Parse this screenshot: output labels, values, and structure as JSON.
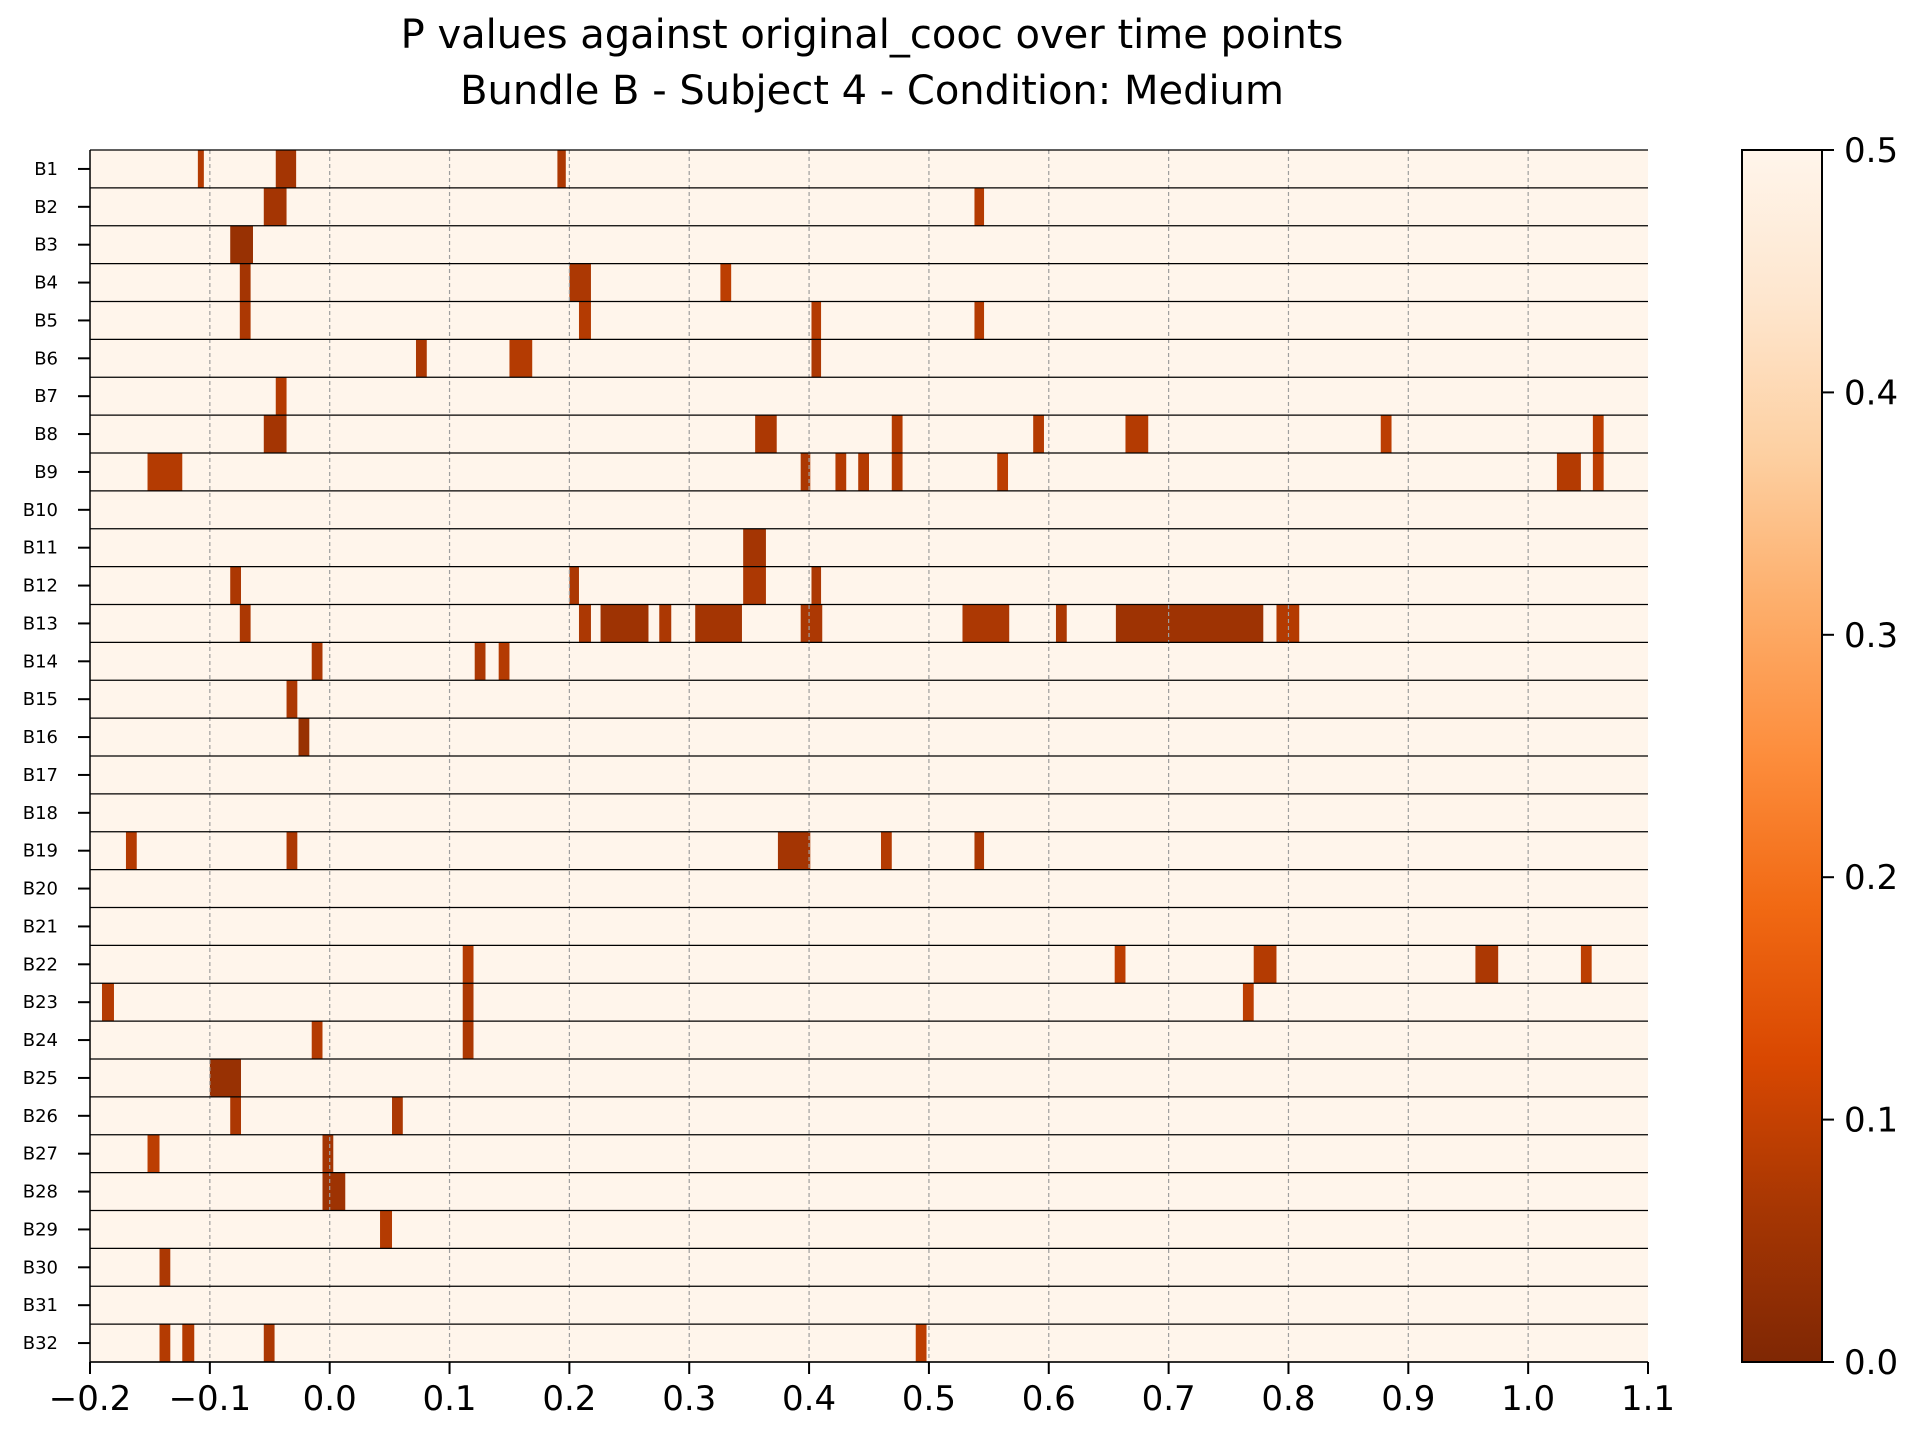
{
  "chart_data": {
    "type": "heatmap",
    "title": "P values against original_cooc over time points",
    "subtitle": "Bundle B - Subject 4 - Condition: Medium",
    "xlabel": "",
    "ylabel": "",
    "xlim": [
      -0.2,
      1.1
    ],
    "x_ticks": [
      -0.2,
      -0.1,
      0.0,
      0.1,
      0.2,
      0.3,
      0.4,
      0.5,
      0.6,
      0.7,
      0.8,
      0.9,
      1.0,
      1.1
    ],
    "x_tick_labels": [
      "−0.2",
      "−0.1",
      "0.0",
      "0.1",
      "0.2",
      "0.3",
      "0.4",
      "0.5",
      "0.6",
      "0.7",
      "0.8",
      "0.9",
      "1.0",
      "1.1"
    ],
    "rows": [
      "B1",
      "B2",
      "B3",
      "B4",
      "B5",
      "B6",
      "B7",
      "B8",
      "B9",
      "B10",
      "B11",
      "B12",
      "B13",
      "B14",
      "B15",
      "B16",
      "B17",
      "B18",
      "B19",
      "B20",
      "B21",
      "B22",
      "B23",
      "B24",
      "B25",
      "B26",
      "B27",
      "B28",
      "B29",
      "B30",
      "B31",
      "B32"
    ],
    "background_p": 0.5,
    "grid": "vertical dashed at x ticks",
    "colorbar": {
      "min": 0.0,
      "max": 0.5,
      "ticks": [
        0.0,
        0.1,
        0.2,
        0.3,
        0.4,
        0.5
      ],
      "tick_labels": [
        "0.0",
        "0.1",
        "0.2",
        "0.3",
        "0.4",
        "0.5"
      ],
      "colors": [
        "#7f2704",
        "#a63603",
        "#d94801",
        "#f16913",
        "#fd8d3c",
        "#fdae6b",
        "#fdd0a2",
        "#fee6ce",
        "#fff5eb"
      ]
    },
    "significant_cells": [
      {
        "row": "B1",
        "x": [
          -0.11,
          -0.105
        ],
        "p": 0.08
      },
      {
        "row": "B1",
        "x": [
          -0.045,
          -0.028
        ],
        "p": 0.06
      },
      {
        "row": "B1",
        "x": [
          0.19,
          0.197
        ],
        "p": 0.07
      },
      {
        "row": "B2",
        "x": [
          -0.055,
          -0.036
        ],
        "p": 0.06
      },
      {
        "row": "B2",
        "x": [
          0.538,
          0.546
        ],
        "p": 0.08
      },
      {
        "row": "B3",
        "x": [
          -0.083,
          -0.064
        ],
        "p": 0.04
      },
      {
        "row": "B4",
        "x": [
          -0.075,
          -0.066
        ],
        "p": 0.06
      },
      {
        "row": "B4",
        "x": [
          0.2,
          0.218
        ],
        "p": 0.07
      },
      {
        "row": "B4",
        "x": [
          0.326,
          0.335
        ],
        "p": 0.09
      },
      {
        "row": "B5",
        "x": [
          -0.075,
          -0.066
        ],
        "p": 0.07
      },
      {
        "row": "B5",
        "x": [
          0.208,
          0.218
        ],
        "p": 0.08
      },
      {
        "row": "B5",
        "x": [
          0.402,
          0.41
        ],
        "p": 0.08
      },
      {
        "row": "B5",
        "x": [
          0.538,
          0.546
        ],
        "p": 0.08
      },
      {
        "row": "B6",
        "x": [
          0.072,
          0.081
        ],
        "p": 0.07
      },
      {
        "row": "B6",
        "x": [
          0.15,
          0.169
        ],
        "p": 0.08
      },
      {
        "row": "B6",
        "x": [
          0.402,
          0.41
        ],
        "p": 0.07
      },
      {
        "row": "B7",
        "x": [
          -0.045,
          -0.036
        ],
        "p": 0.08
      },
      {
        "row": "B8",
        "x": [
          -0.055,
          -0.036
        ],
        "p": 0.06
      },
      {
        "row": "B8",
        "x": [
          0.355,
          0.373
        ],
        "p": 0.07
      },
      {
        "row": "B8",
        "x": [
          0.469,
          0.478
        ],
        "p": 0.08
      },
      {
        "row": "B8",
        "x": [
          0.587,
          0.596
        ],
        "p": 0.08
      },
      {
        "row": "B8",
        "x": [
          0.664,
          0.683
        ],
        "p": 0.08
      },
      {
        "row": "B8",
        "x": [
          0.877,
          0.886
        ],
        "p": 0.09
      },
      {
        "row": "B8",
        "x": [
          1.054,
          1.063
        ],
        "p": 0.09
      },
      {
        "row": "B9",
        "x": [
          -0.152,
          -0.123
        ],
        "p": 0.08
      },
      {
        "row": "B9",
        "x": [
          0.393,
          0.401
        ],
        "p": 0.07
      },
      {
        "row": "B9",
        "x": [
          0.422,
          0.431
        ],
        "p": 0.08
      },
      {
        "row": "B9",
        "x": [
          0.441,
          0.45
        ],
        "p": 0.08
      },
      {
        "row": "B9",
        "x": [
          0.469,
          0.478
        ],
        "p": 0.08
      },
      {
        "row": "B9",
        "x": [
          0.557,
          0.566
        ],
        "p": 0.09
      },
      {
        "row": "B9",
        "x": [
          1.024,
          1.044
        ],
        "p": 0.08
      },
      {
        "row": "B9",
        "x": [
          1.054,
          1.063
        ],
        "p": 0.09
      },
      {
        "row": "B11",
        "x": [
          0.345,
          0.364
        ],
        "p": 0.06
      },
      {
        "row": "B12",
        "x": [
          -0.083,
          -0.074
        ],
        "p": 0.07
      },
      {
        "row": "B12",
        "x": [
          0.2,
          0.208
        ],
        "p": 0.07
      },
      {
        "row": "B12",
        "x": [
          0.345,
          0.364
        ],
        "p": 0.07
      },
      {
        "row": "B12",
        "x": [
          0.402,
          0.41
        ],
        "p": 0.07
      },
      {
        "row": "B13",
        "x": [
          -0.075,
          -0.066
        ],
        "p": 0.07
      },
      {
        "row": "B13",
        "x": [
          0.208,
          0.218
        ],
        "p": 0.07
      },
      {
        "row": "B13",
        "x": [
          0.226,
          0.266
        ],
        "p": 0.05
      },
      {
        "row": "B13",
        "x": [
          0.275,
          0.285
        ],
        "p": 0.07
      },
      {
        "row": "B13",
        "x": [
          0.305,
          0.344
        ],
        "p": 0.06
      },
      {
        "row": "B13",
        "x": [
          0.393,
          0.411
        ],
        "p": 0.07
      },
      {
        "row": "B13",
        "x": [
          0.528,
          0.567
        ],
        "p": 0.07
      },
      {
        "row": "B13",
        "x": [
          0.606,
          0.615
        ],
        "p": 0.07
      },
      {
        "row": "B13",
        "x": [
          0.656,
          0.779
        ],
        "p": 0.05
      },
      {
        "row": "B13",
        "x": [
          0.79,
          0.809
        ],
        "p": 0.08
      },
      {
        "row": "B14",
        "x": [
          -0.015,
          -0.006
        ],
        "p": 0.07
      },
      {
        "row": "B14",
        "x": [
          0.121,
          0.13
        ],
        "p": 0.07
      },
      {
        "row": "B14",
        "x": [
          0.141,
          0.15
        ],
        "p": 0.08
      },
      {
        "row": "B15",
        "x": [
          -0.036,
          -0.027
        ],
        "p": 0.07
      },
      {
        "row": "B16",
        "x": [
          -0.026,
          -0.017
        ],
        "p": 0.04
      },
      {
        "row": "B19",
        "x": [
          -0.17,
          -0.161
        ],
        "p": 0.08
      },
      {
        "row": "B19",
        "x": [
          -0.036,
          -0.027
        ],
        "p": 0.07
      },
      {
        "row": "B19",
        "x": [
          0.374,
          0.401
        ],
        "p": 0.06
      },
      {
        "row": "B19",
        "x": [
          0.46,
          0.469
        ],
        "p": 0.08
      },
      {
        "row": "B19",
        "x": [
          0.538,
          0.546
        ],
        "p": 0.07
      },
      {
        "row": "B22",
        "x": [
          0.111,
          0.12
        ],
        "p": 0.08
      },
      {
        "row": "B22",
        "x": [
          0.655,
          0.664
        ],
        "p": 0.09
      },
      {
        "row": "B22",
        "x": [
          0.771,
          0.79
        ],
        "p": 0.08
      },
      {
        "row": "B22",
        "x": [
          0.956,
          0.975
        ],
        "p": 0.07
      },
      {
        "row": "B22",
        "x": [
          1.044,
          1.053
        ],
        "p": 0.09
      },
      {
        "row": "B23",
        "x": [
          -0.19,
          -0.18
        ],
        "p": 0.08
      },
      {
        "row": "B23",
        "x": [
          0.111,
          0.12
        ],
        "p": 0.07
      },
      {
        "row": "B23",
        "x": [
          0.762,
          0.771
        ],
        "p": 0.09
      },
      {
        "row": "B24",
        "x": [
          -0.015,
          -0.006
        ],
        "p": 0.08
      },
      {
        "row": "B24",
        "x": [
          0.111,
          0.12
        ],
        "p": 0.07
      },
      {
        "row": "B25",
        "x": [
          -0.1,
          -0.074
        ],
        "p": 0.04
      },
      {
        "row": "B26",
        "x": [
          -0.083,
          -0.074
        ],
        "p": 0.07
      },
      {
        "row": "B26",
        "x": [
          0.052,
          0.061
        ],
        "p": 0.07
      },
      {
        "row": "B27",
        "x": [
          -0.152,
          -0.142
        ],
        "p": 0.09
      },
      {
        "row": "B27",
        "x": [
          -0.006,
          0.003
        ],
        "p": 0.06
      },
      {
        "row": "B28",
        "x": [
          -0.006,
          0.013
        ],
        "p": 0.05
      },
      {
        "row": "B29",
        "x": [
          0.042,
          0.052
        ],
        "p": 0.08
      },
      {
        "row": "B30",
        "x": [
          -0.142,
          -0.133
        ],
        "p": 0.07
      },
      {
        "row": "B32",
        "x": [
          -0.142,
          -0.133
        ],
        "p": 0.08
      },
      {
        "row": "B32",
        "x": [
          -0.123,
          -0.113
        ],
        "p": 0.08
      },
      {
        "row": "B32",
        "x": [
          -0.055,
          -0.046
        ],
        "p": 0.07
      },
      {
        "row": "B32",
        "x": [
          0.489,
          0.498
        ],
        "p": 0.09
      }
    ]
  }
}
